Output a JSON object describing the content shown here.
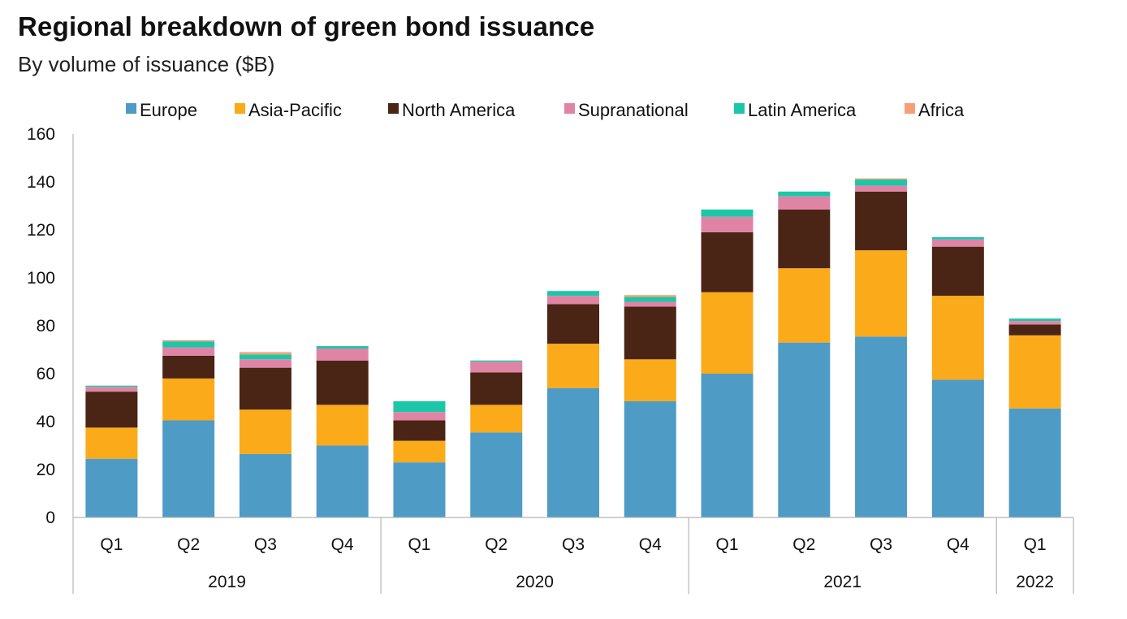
{
  "title": "Regional breakdown of green bond issuance",
  "subtitle": "By volume of issuance ($B)",
  "chart_data": {
    "type": "bar",
    "stacked": true,
    "title": "Regional breakdown of green bond issuance",
    "subtitle": "By volume of issuance ($B)",
    "xlabel": "",
    "ylabel": "",
    "ylim": [
      0,
      160
    ],
    "yticks": [
      0,
      20,
      40,
      60,
      80,
      100,
      120,
      140,
      160
    ],
    "grid": false,
    "legend_position": "top",
    "categories": [
      "Q1",
      "Q2",
      "Q3",
      "Q4",
      "Q1",
      "Q2",
      "Q3",
      "Q4",
      "Q1",
      "Q2",
      "Q3",
      "Q4",
      "Q1"
    ],
    "groups": [
      {
        "label": "2019",
        "count": 4
      },
      {
        "label": "2020",
        "count": 4
      },
      {
        "label": "2021",
        "count": 4
      },
      {
        "label": "2022",
        "count": 1
      }
    ],
    "series": [
      {
        "name": "Europe",
        "color": "#4E9BC6",
        "values": [
          24.5,
          40.5,
          26.5,
          30,
          23,
          35.5,
          54,
          48.5,
          60,
          73,
          75.5,
          57.5,
          45.5
        ]
      },
      {
        "name": "Asia-Pacific",
        "color": "#FBAA19",
        "values": [
          13,
          17.5,
          18.5,
          17,
          9,
          11.5,
          18.5,
          17.5,
          34,
          31,
          36,
          35,
          30.5
        ]
      },
      {
        "name": "North America",
        "color": "#4A2415",
        "values": [
          15,
          9.5,
          17.5,
          18.5,
          8.5,
          13.5,
          16.5,
          22,
          25,
          24.5,
          24.5,
          20.5,
          4.5
        ]
      },
      {
        "name": "Supranational",
        "color": "#E084A5",
        "values": [
          2,
          3.5,
          3.5,
          5,
          3.5,
          4.5,
          3.5,
          2,
          6.5,
          5.5,
          2.5,
          3,
          1.5
        ]
      },
      {
        "name": "Latin America",
        "color": "#1CC7A8",
        "values": [
          0.5,
          2.5,
          2,
          1,
          4.5,
          0.5,
          2,
          2,
          3,
          2,
          2.5,
          1,
          1
        ]
      },
      {
        "name": "Africa",
        "color": "#F6A07A",
        "values": [
          0,
          0.5,
          1,
          0,
          0,
          0,
          0,
          0.8,
          0,
          0,
          0.5,
          0,
          0
        ]
      }
    ]
  }
}
